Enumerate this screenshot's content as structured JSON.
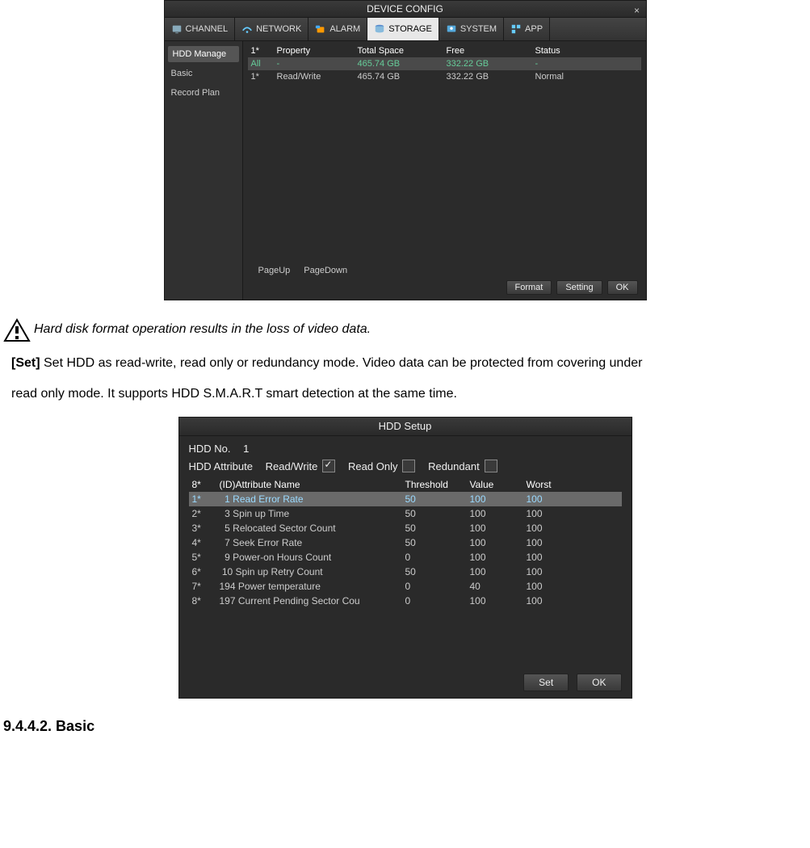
{
  "device": {
    "title": "DEVICE CONFIG",
    "tabs": {
      "channel": "CHANNEL",
      "network": "NETWORK",
      "alarm": "ALARM",
      "storage": "STORAGE",
      "system": "SYSTEM",
      "app": "APP"
    },
    "sidebar": {
      "hdd_manage": "HDD Manage",
      "basic": "Basic",
      "record_plan": "Record Plan"
    },
    "table": {
      "head_idx": "1*",
      "head_property": "Property",
      "head_total": "Total Space",
      "head_free": "Free",
      "head_status": "Status",
      "sum_idx": "All",
      "sum_property": "-",
      "sum_total": "465.74 GB",
      "sum_free": "332.22 GB",
      "sum_status": "-",
      "row_idx": "1*",
      "row_property": "Read/Write",
      "row_total": "465.74 GB",
      "row_free": "332.22 GB",
      "row_status": "Normal"
    },
    "pager_up": "PageUp",
    "pager_down": "PageDown",
    "btn_format": "Format",
    "btn_setting": "Setting",
    "btn_ok": "OK"
  },
  "text": {
    "warn": "Hard disk format operation results in the loss of video data.",
    "set_label": "[Set]",
    "set_body_1": " Set HDD as read-write, read only or redundancy mode. Video data can be protected from covering under",
    "set_body_2": "read only mode. It supports HDD S.M.A.R.T smart detection at the same time."
  },
  "setup": {
    "title": "HDD Setup",
    "hdd_no_label": "HDD No.",
    "hdd_no_value": "1",
    "attr_label": "HDD Attribute",
    "attr_rw": "Read/Write",
    "attr_ro": "Read Only",
    "attr_red": "Redundant",
    "table": {
      "head_idx": "8*",
      "head_name": "(ID)Attribute Name",
      "head_thresh": "Threshold",
      "head_value": "Value",
      "head_worst": "Worst",
      "rows": [
        {
          "idx": "1*",
          "name": "  1 Read Error Rate",
          "thresh": "50",
          "value": "100",
          "worst": "100",
          "sel": true
        },
        {
          "idx": "2*",
          "name": "  3 Spin up Time",
          "thresh": "50",
          "value": "100",
          "worst": "100"
        },
        {
          "idx": "3*",
          "name": "  5 Relocated Sector Count",
          "thresh": "50",
          "value": "100",
          "worst": "100"
        },
        {
          "idx": "4*",
          "name": "  7 Seek Error Rate",
          "thresh": "50",
          "value": "100",
          "worst": "100"
        },
        {
          "idx": "5*",
          "name": "  9 Power-on Hours Count",
          "thresh": "0",
          "value": "100",
          "worst": "100"
        },
        {
          "idx": "6*",
          "name": " 10 Spin up Retry Count",
          "thresh": "50",
          "value": "100",
          "worst": "100"
        },
        {
          "idx": "7*",
          "name": "194 Power temperature",
          "thresh": "0",
          "value": "40",
          "worst": "100"
        },
        {
          "idx": "8*",
          "name": "197 Current Pending Sector Cou",
          "thresh": "0",
          "value": "100",
          "worst": "100"
        }
      ]
    },
    "btn_set": "Set",
    "btn_ok": "OK"
  },
  "section_heading": "9.4.4.2. Basic"
}
